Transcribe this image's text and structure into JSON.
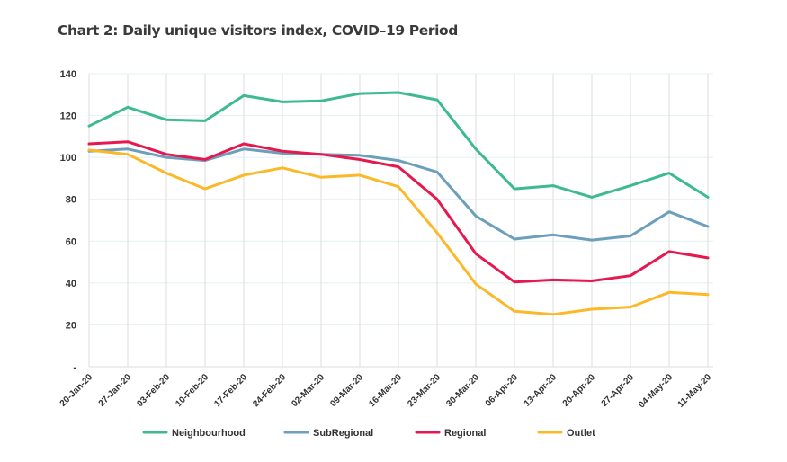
{
  "chart_data": {
    "type": "line",
    "title": "Chart 2: Daily unique visitors index, COVID–19 Period",
    "xlabel": "",
    "ylabel": "",
    "ylim": [
      0,
      140
    ],
    "yticks": [
      0,
      20,
      40,
      60,
      80,
      100,
      120,
      140
    ],
    "ytick_labels": [
      "-",
      "20",
      "40",
      "60",
      "80",
      "100",
      "120",
      "140"
    ],
    "grid": true,
    "legend_position": "bottom",
    "categories": [
      "20-Jan-20",
      "27-Jan-20",
      "03-Feb-20",
      "10-Feb-20",
      "17-Feb-20",
      "24-Feb-20",
      "02-Mar-20",
      "09-Mar-20",
      "16-Mar-20",
      "23-Mar-20",
      "30-Mar-20",
      "06-Apr-20",
      "13-Apr-20",
      "20-Apr-20",
      "27-Apr-20",
      "04-May-20",
      "11-May-20"
    ],
    "series": [
      {
        "name": "Neighbourhood",
        "color": "#3dba8f",
        "values": [
          115,
          124,
          118,
          117.5,
          129.5,
          126.5,
          127,
          130.5,
          131,
          127.5,
          104,
          85,
          86.5,
          81,
          86.5,
          92.5,
          81
        ]
      },
      {
        "name": "SubRegional",
        "color": "#6d9fbb",
        "values": [
          103,
          104,
          100,
          98.5,
          104,
          102,
          101.5,
          101,
          98.5,
          93,
          72,
          61,
          63,
          60.5,
          62.5,
          74,
          67
        ]
      },
      {
        "name": "Regional",
        "color": "#e5194f",
        "values": [
          106.5,
          107.5,
          101.5,
          99,
          106.5,
          103,
          101.5,
          99,
          95.5,
          80,
          54,
          40.5,
          41.5,
          41,
          43.5,
          55,
          52
        ]
      },
      {
        "name": "Outlet",
        "color": "#fbb829",
        "values": [
          103.5,
          101.5,
          92.5,
          85,
          91.5,
          95,
          90.5,
          91.5,
          86,
          64,
          39.5,
          26.5,
          25,
          27.5,
          28.5,
          35.5,
          34.5
        ]
      }
    ]
  }
}
